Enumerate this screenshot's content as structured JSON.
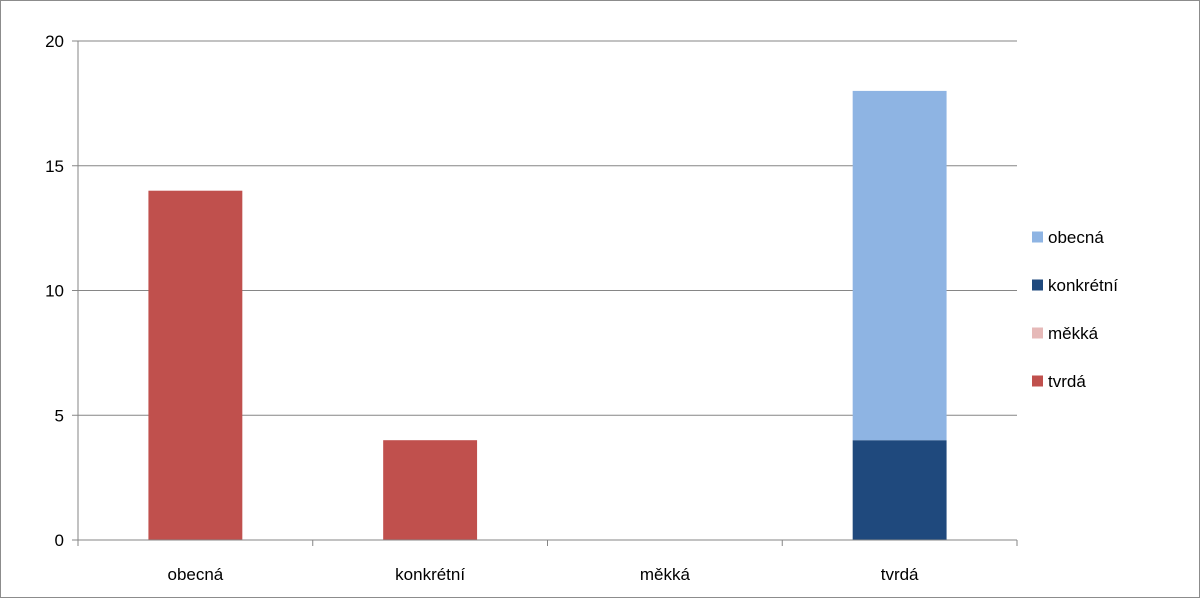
{
  "chart_data": {
    "type": "bar",
    "stacked": true,
    "categories": [
      "obecná",
      "konkrétní",
      "měkká",
      "tvrdá"
    ],
    "series": [
      {
        "name": "tvrdá",
        "color": "#C0504D",
        "values": [
          14,
          4,
          0,
          0
        ]
      },
      {
        "name": "měkká",
        "color": "#E6B9B8",
        "values": [
          0,
          0,
          0,
          0
        ]
      },
      {
        "name": "konkrétní",
        "color": "#1F497D",
        "values": [
          0,
          0,
          0,
          4
        ]
      },
      {
        "name": "obecná",
        "color": "#8EB4E3",
        "values": [
          0,
          0,
          0,
          14
        ]
      }
    ],
    "legend_order": [
      "obecná",
      "konkrétní",
      "měkká",
      "tvrdá"
    ],
    "title": "",
    "xlabel": "",
    "ylabel": "",
    "ylim": [
      0,
      20
    ],
    "yticks": [
      0,
      5,
      10,
      15,
      20
    ],
    "grid": true,
    "legend_position": "right"
  }
}
